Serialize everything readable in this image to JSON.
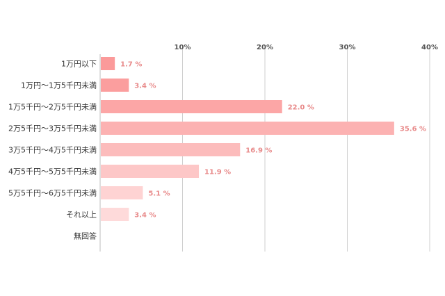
{
  "chart_data": {
    "type": "bar",
    "orientation": "horizontal",
    "title": "",
    "xlabel": "",
    "ylabel": "",
    "xlim": [
      0,
      40
    ],
    "ticks": [
      {
        "value": 10,
        "label": "10%"
      },
      {
        "value": 20,
        "label": "20%"
      },
      {
        "value": 30,
        "label": "30%"
      },
      {
        "value": 40,
        "label": "40%"
      }
    ],
    "grid": true,
    "legend": "none",
    "categories": [
      "1万円以下",
      "1万円～1万5千円未満",
      "1万5千円～2万5千円未満",
      "2万5千円～3万5千円未満",
      "3万5千円～4万5千円未満",
      "4万5千円～5万5千円未満",
      "5万5千円～6万5千円未満",
      "それ以上",
      "無回答"
    ],
    "values": [
      1.7,
      3.4,
      22.0,
      35.6,
      16.9,
      11.9,
      5.1,
      3.4,
      null
    ],
    "value_labels": [
      "1.7 %",
      "3.4 %",
      "22.0 %",
      "35.6 %",
      "16.9 %",
      "11.9 %",
      "5.1 %",
      "3.4 %",
      ""
    ],
    "bar_colors": [
      "#fb9a9a",
      "#fb9e9e",
      "#fca6a6",
      "#fcb2b2",
      "#fcbcbc",
      "#fdc7c7",
      "#fed3d3",
      "#fedada",
      "#fee2e2"
    ],
    "value_label_color": "#e88a8a"
  }
}
